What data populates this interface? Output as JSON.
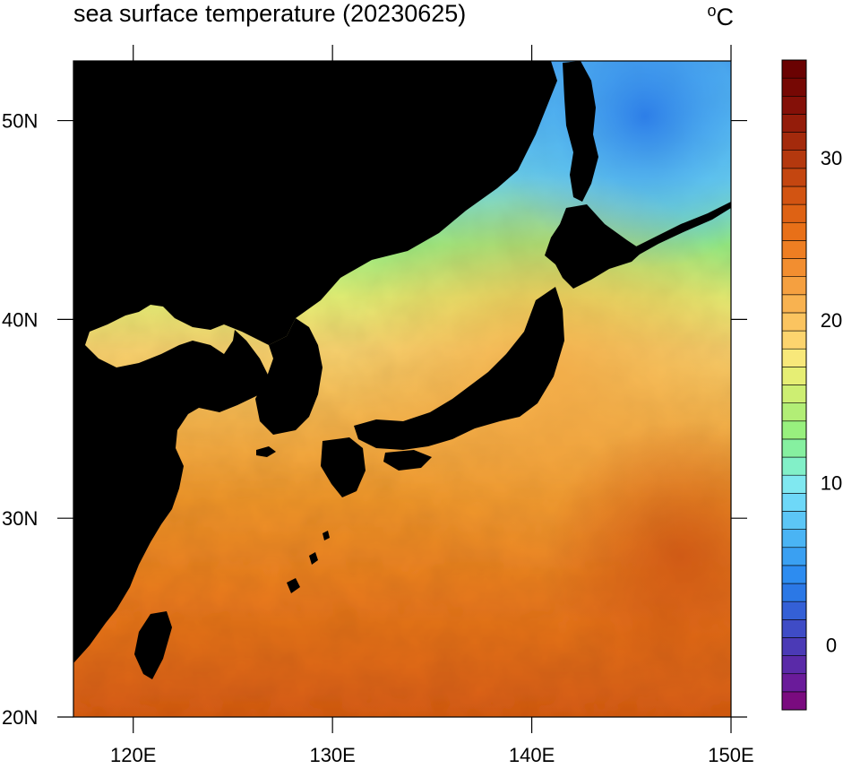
{
  "title": "sea surface temperature (20230625)",
  "unit": {
    "degree": "o",
    "letter": "C"
  },
  "map": {
    "lon_range": [
      117,
      150
    ],
    "lat_range": [
      20,
      53
    ],
    "lon_ticks": [
      {
        "value": 120,
        "label": "120E"
      },
      {
        "value": 130,
        "label": "130E"
      },
      {
        "value": 140,
        "label": "140E"
      },
      {
        "value": 150,
        "label": "150E"
      }
    ],
    "lat_ticks": [
      {
        "value": 20,
        "label": "20N"
      },
      {
        "value": 30,
        "label": "30N"
      },
      {
        "value": 40,
        "label": "40N"
      },
      {
        "value": 50,
        "label": "50N"
      }
    ],
    "land_color": "#000000"
  },
  "colorbar": {
    "range": [
      -4,
      36
    ],
    "ticks": [
      {
        "value": 0,
        "label": "0"
      },
      {
        "value": 10,
        "label": "10"
      },
      {
        "value": 20,
        "label": "20"
      },
      {
        "value": 30,
        "label": "30"
      }
    ],
    "colors": [
      "#7a0b7f",
      "#6a1b9a",
      "#5a2aa8",
      "#4b3ab6",
      "#3f4cc6",
      "#3460d6",
      "#2b78e6",
      "#2d8cf0",
      "#3aa0f2",
      "#4ab4f4",
      "#5cc6f6",
      "#6ed8f8",
      "#80e8f0",
      "#82f0c8",
      "#86f0a0",
      "#98f07e",
      "#b2ee76",
      "#cdee72",
      "#e6ee74",
      "#f8e87a",
      "#fcd46e",
      "#fbc460",
      "#f8b250",
      "#f5a040",
      "#f28e30",
      "#ee7e22",
      "#e87018",
      "#de6214",
      "#d25412",
      "#c44610",
      "#b4380e",
      "#a42a0c",
      "#941c0a",
      "#841008",
      "#760804",
      "#6a0202"
    ]
  }
}
